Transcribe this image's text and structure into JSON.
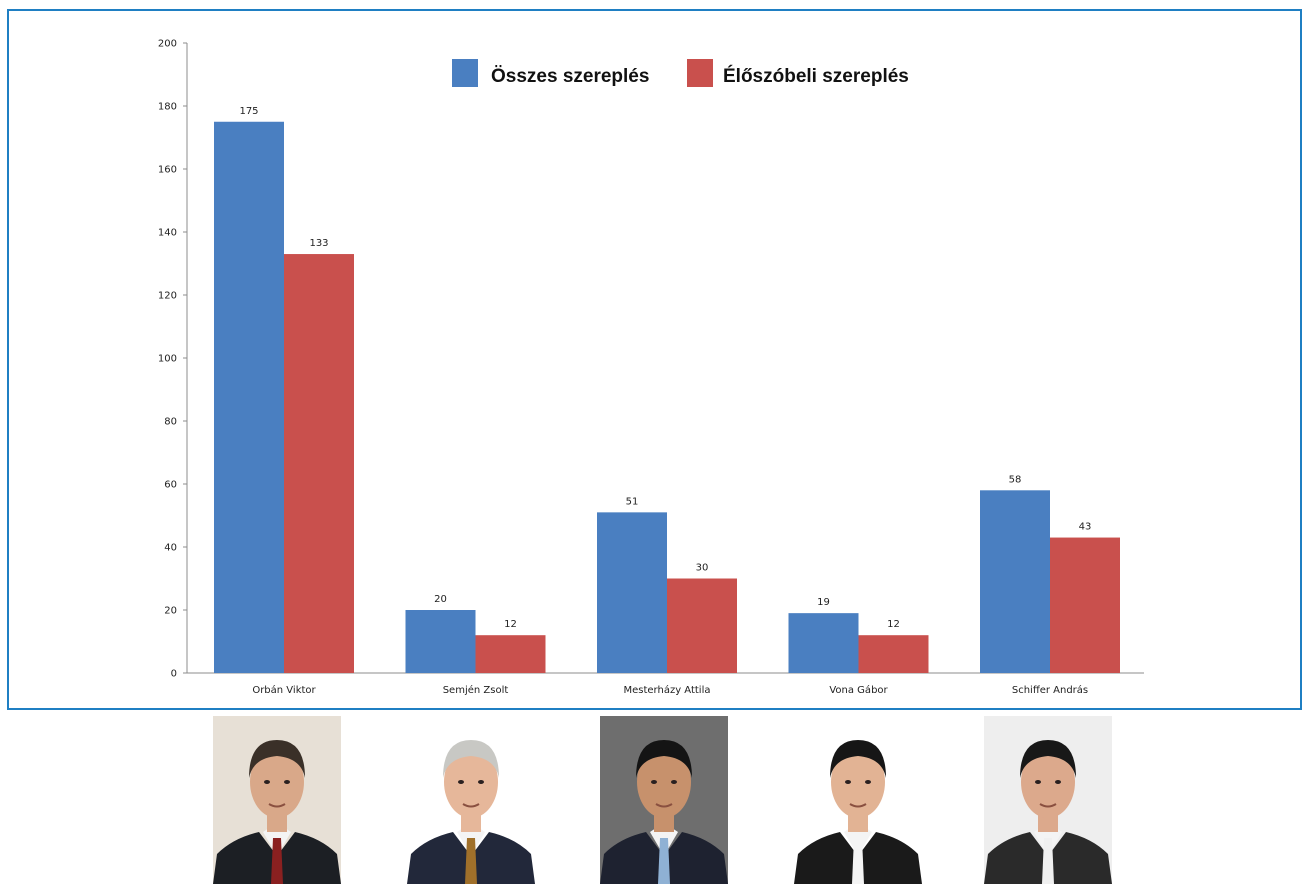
{
  "chart_data": {
    "type": "bar",
    "categories": [
      "Orbán Viktor",
      "Semjén Zsolt",
      "Mesterházy Attila",
      "Vona Gábor",
      "Schiffer András"
    ],
    "series": [
      {
        "name": "Összes szereplés",
        "color": "#4a7fc1",
        "values": [
          175,
          20,
          51,
          19,
          58
        ]
      },
      {
        "name": "Élőszóbeli szereplés",
        "color": "#c9504d",
        "values": [
          133,
          12,
          30,
          12,
          43
        ]
      }
    ],
    "ylim": [
      0,
      200
    ],
    "yticks": [
      0,
      20,
      40,
      60,
      80,
      100,
      120,
      140,
      160,
      180,
      200
    ],
    "grid": false,
    "legend": "top"
  },
  "portraits": [
    {
      "icon": "portrait-icon",
      "bg": "#e7e0d6",
      "hair": "#3a3028",
      "suit": "#1c1f24",
      "tie": "#8a2020",
      "skin": "#d9a889"
    },
    {
      "icon": "portrait-icon",
      "bg": "#ffffff",
      "hair": "#c8c8c4",
      "suit": "#22283a",
      "tie": "#a0702a",
      "skin": "#e6b79a"
    },
    {
      "icon": "portrait-icon",
      "bg": "#6e6e6e",
      "hair": "#141414",
      "suit": "#1e2230",
      "tie": "#8fb1d4",
      "skin": "#c7916c"
    },
    {
      "icon": "portrait-icon",
      "bg": "#ffffff",
      "hair": "#161616",
      "suit": "#1a1a1a",
      "tie": "#f4f4f4",
      "skin": "#e2b394"
    },
    {
      "icon": "portrait-icon",
      "bg": "#eeeeee",
      "hair": "#181818",
      "suit": "#2a2a2a",
      "tie": "#f0f0f0",
      "skin": "#dca98c"
    }
  ]
}
